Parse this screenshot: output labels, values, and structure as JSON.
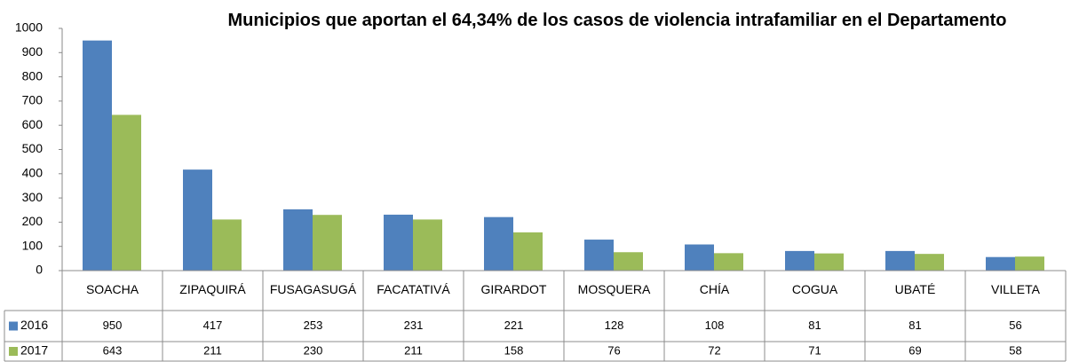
{
  "chart_data": {
    "type": "bar",
    "title": "Municipios que aportan el 64,34% de los casos de violencia intrafamiliar en el Departamento",
    "categories": [
      "SOACHA",
      "ZIPAQUIRÁ",
      "FUSAGASUGÁ",
      "FACATATIVÁ",
      "GIRARDOT",
      "MOSQUERA",
      "CHÍA",
      "COGUA",
      "UBATÉ",
      "VILLETA"
    ],
    "series": [
      {
        "name": "2016",
        "color": "#4f81bd",
        "values": [
          950,
          417,
          253,
          231,
          221,
          128,
          108,
          81,
          81,
          56
        ]
      },
      {
        "name": "2017",
        "color": "#9bbb59",
        "values": [
          643,
          211,
          230,
          211,
          158,
          76,
          72,
          71,
          69,
          58
        ]
      }
    ],
    "ylim": [
      0,
      1000
    ],
    "yticks": [
      0,
      100,
      200,
      300,
      400,
      500,
      600,
      700,
      800,
      900,
      1000
    ],
    "data_table": true
  }
}
